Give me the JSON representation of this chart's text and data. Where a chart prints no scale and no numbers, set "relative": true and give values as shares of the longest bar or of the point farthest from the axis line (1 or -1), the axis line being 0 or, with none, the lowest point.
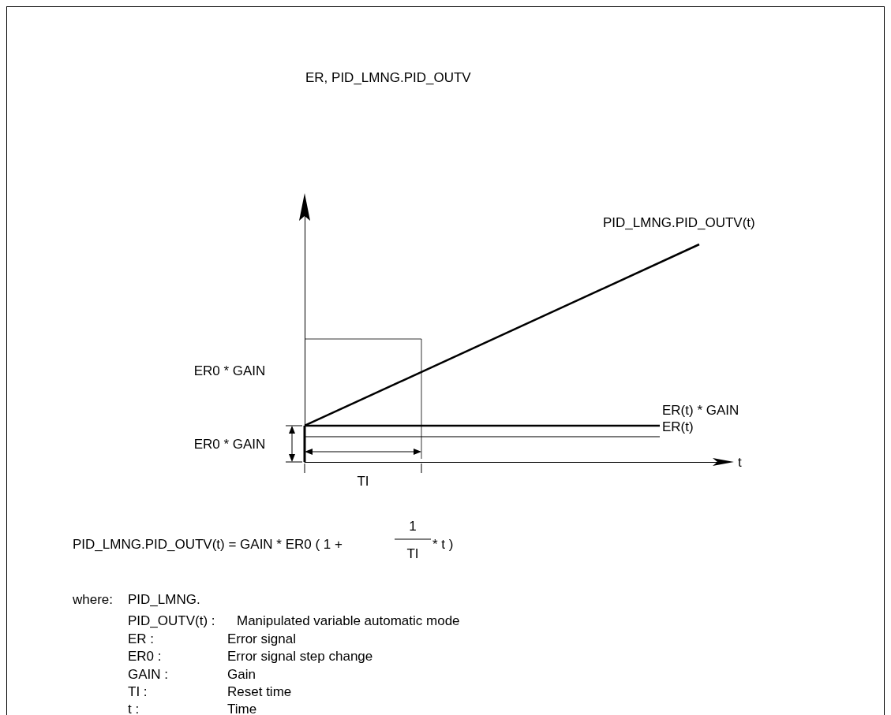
{
  "chart_data": {
    "type": "line",
    "relative": true,
    "xlabel": "t",
    "categories": [
      null,
      null,
      null,
      null,
      null,
      null,
      null,
      null,
      null,
      null,
      null
    ],
    "legend": false,
    "grid": false,
    "marker": "none",
    "line_style": "solid",
    "series": [
      {
        "name": "PID_LMNG.PID_OUTV(t)",
        "color": "#000000",
        "values": [
          0.167,
          null,
          null,
          null,
          null,
          null,
          null,
          null,
          null,
          null,
          1
        ]
      },
      {
        "name": "ER(t) * GAIN",
        "color": "#000000",
        "values": [
          0.167,
          null,
          null,
          null,
          null,
          null,
          null,
          null,
          null,
          0.167,
          null
        ]
      },
      {
        "name": "ER(t)",
        "color": "#000000",
        "values": [
          0.116,
          null,
          null,
          null,
          null,
          null,
          null,
          null,
          null,
          0.116,
          null
        ]
      }
    ],
    "annotations": [
      "ER, PID_LMNG.PID_OUTV",
      "ER0 * GAIN",
      "ER0 * GAIN",
      "TI",
      "PID_LMNG.PID_OUTV(t) = GAIN * ER0 ( 1 +",
      "1",
      "TI",
      "* t )",
      "where:",
      "PID_LMNG.",
      "PID_OUTV(t) :",
      "Manipulated variable automatic mode",
      "ER :",
      "Error signal",
      "ER0 :",
      "Error signal step change",
      "GAIN :",
      "Gain",
      "TI :",
      "Reset time",
      "t :",
      "Time"
    ]
  }
}
